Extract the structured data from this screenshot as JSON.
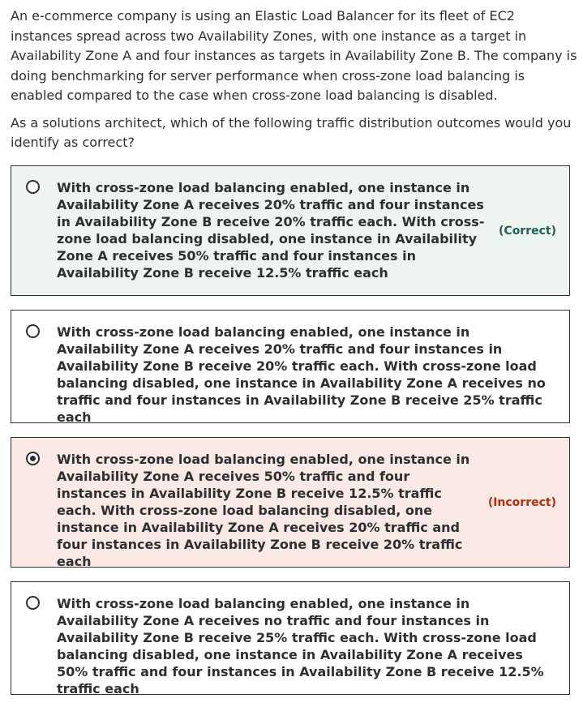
{
  "question": {
    "paragraph_1": "An e-commerce company is using an Elastic Load Balancer for its fleet of EC2 instances spread across two Availability Zones, with one instance as a target in Availability Zone A and four instances as targets in Availability Zone B. The company is doing benchmarking for server performance when cross-zone load balancing is enabled compared to the case when cross-zone load balancing is disabled.",
    "paragraph_2": "As a solutions architect, which of the following traffic distribution outcomes would you identify as correct?"
  },
  "options": [
    {
      "text": "With cross-zone load balancing enabled, one instance in Availability Zone A receives 20% traffic and four instances in Availability Zone B receive 20% traffic each. With cross-zone load balancing disabled, one instance in Availability Zone A receives 50% traffic and four instances in Availability Zone B receive 12.5% traffic each",
      "selected": false,
      "verdict": "(Correct)"
    },
    {
      "text": "With cross-zone load balancing enabled, one instance in Availability Zone A receives 20% traffic and four instances in Availability Zone B receive 20% traffic each. With cross-zone load balancing disabled, one instance in Availability Zone A receives no traffic and four instances in Availability Zone B receive 25% traffic each",
      "selected": false,
      "verdict": ""
    },
    {
      "text": "With cross-zone load balancing enabled, one instance in Availability Zone A receives 50% traffic and four instances in Availability Zone B receive 12.5% traffic each. With cross-zone load balancing disabled, one instance in Availability Zone A receives 20% traffic and four instances in Availability Zone B receive 20% traffic each",
      "selected": true,
      "verdict": "(Incorrect)"
    },
    {
      "text": "With cross-zone load balancing enabled, one instance in Availability Zone A receives no traffic and four instances in Availability Zone B receive 25% traffic each. With cross-zone load balancing disabled, one instance in Availability Zone A receives 50% traffic and four instances in Availability Zone B receive 12.5% traffic each",
      "selected": false,
      "verdict": ""
    }
  ],
  "colors": {
    "correct_bg": "#eef5f0",
    "correct_text": "#1e6055",
    "incorrect_bg": "#fbe9e6",
    "incorrect_text": "#b32d0f",
    "border": "#2d2f31"
  }
}
